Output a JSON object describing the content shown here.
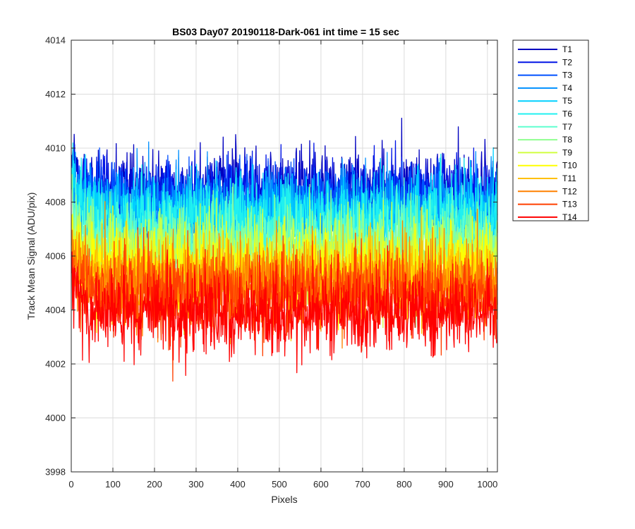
{
  "chart_data": {
    "type": "line",
    "title": "BS03 Day07 20190118-Dark-061 int time = 15 sec",
    "xlabel": "Pixels",
    "ylabel": "Track Mean Signal (ADU/pix)",
    "xlim": [
      0,
      1024
    ],
    "ylim": [
      3998,
      4014
    ],
    "xticks": [
      0,
      100,
      200,
      300,
      400,
      500,
      600,
      700,
      800,
      900,
      1000
    ],
    "yticks": [
      3998,
      4000,
      4002,
      4004,
      4006,
      4008,
      4010,
      4012,
      4014
    ],
    "grid": true,
    "legend": "outside-top-right",
    "series_template": {
      "x_start": 1,
      "x_end": 1024,
      "x_step": 1,
      "y_noise_sd": 0.75,
      "y_edge_rise_at_low_x": 1.2
    },
    "series": [
      {
        "name": "T1",
        "color": "#0000c0",
        "mean": 4008.4
      },
      {
        "name": "T2",
        "color": "#0014e6",
        "mean": 4008.2
      },
      {
        "name": "T3",
        "color": "#0050ff",
        "mean": 4007.9
      },
      {
        "name": "T4",
        "color": "#0090ff",
        "mean": 4007.7
      },
      {
        "name": "T5",
        "color": "#00d0ff",
        "mean": 4007.5
      },
      {
        "name": "T6",
        "color": "#20f0f0",
        "mean": 4007.3
      },
      {
        "name": "T7",
        "color": "#60ffd0",
        "mean": 4006.6
      },
      {
        "name": "T8",
        "color": "#90ff90",
        "mean": 4006.3
      },
      {
        "name": "T9",
        "color": "#d0ff40",
        "mean": 4005.9
      },
      {
        "name": "T10",
        "color": "#ffff00",
        "mean": 4005.5
      },
      {
        "name": "T11",
        "color": "#ffc000",
        "mean": 4005.2
      },
      {
        "name": "T12",
        "color": "#ff8000",
        "mean": 4005.0
      },
      {
        "name": "T13",
        "color": "#ff4000",
        "mean": 4004.6
      },
      {
        "name": "T14",
        "color": "#ff0000",
        "mean": 4003.9
      }
    ]
  }
}
